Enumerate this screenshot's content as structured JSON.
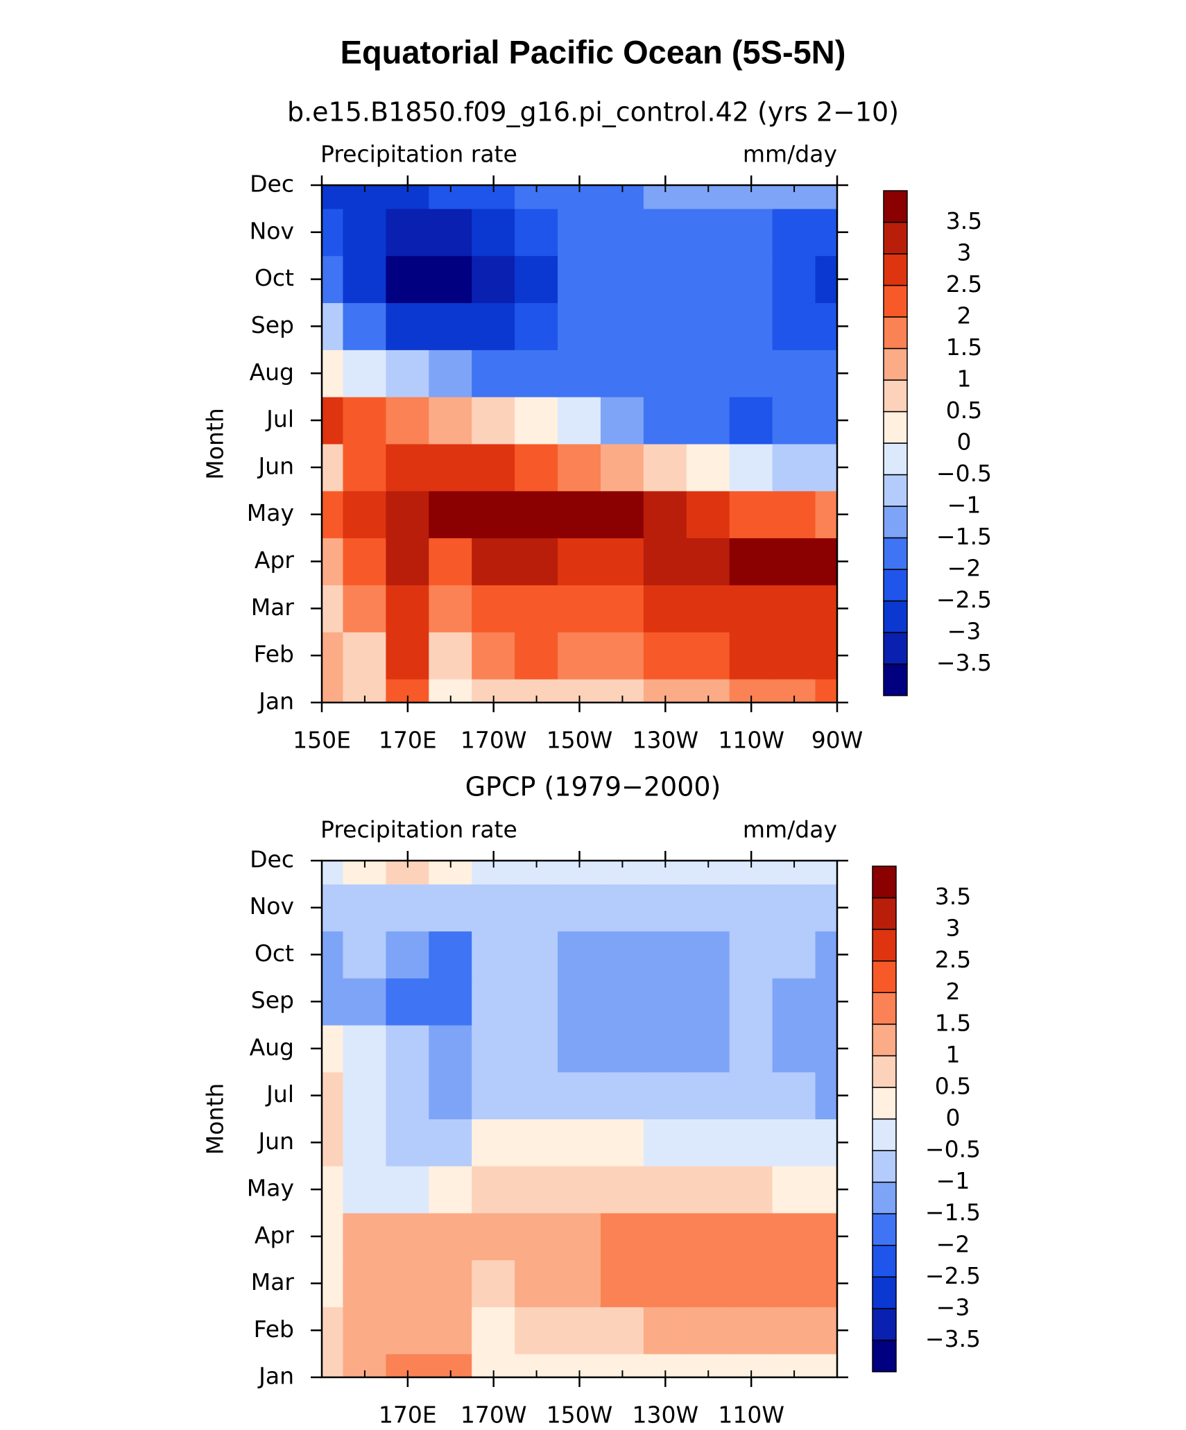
{
  "title": "Equatorial Pacific Ocean (5S-5N)",
  "chart_data": [
    {
      "type": "heatmap",
      "title": "b.e15.B1850.f09_g16.pi_control.42 (yrs 2−10)",
      "left_label": "Precipitation rate",
      "right_label": "mm/day",
      "ylabel": "Month",
      "categories": [
        "Jan",
        "Feb",
        "Mar",
        "Apr",
        "May",
        "Jun",
        "Jul",
        "Aug",
        "Sep",
        "Oct",
        "Nov",
        "Dec"
      ],
      "x": [
        150,
        160,
        170,
        180,
        190,
        200,
        210,
        220,
        230,
        240,
        250,
        260,
        270
      ],
      "xlim": [
        150,
        270
      ],
      "xticks": [
        {
          "value": 150,
          "label": "150E"
        },
        {
          "value": 170,
          "label": "170E"
        },
        {
          "value": 190,
          "label": "170W"
        },
        {
          "value": 210,
          "label": "150W"
        },
        {
          "value": 230,
          "label": "130W"
        },
        {
          "value": 250,
          "label": "110W"
        },
        {
          "value": 270,
          "label": "90W"
        }
      ],
      "values": [
        [
          1.2,
          0.8,
          2.2,
          0.4,
          0.8,
          0.6,
          0.7,
          0.8,
          1.0,
          1.2,
          1.5,
          1.8,
          2.0
        ],
        [
          1.3,
          0.9,
          2.8,
          0.8,
          1.6,
          2.0,
          1.8,
          1.8,
          2.0,
          2.3,
          2.5,
          2.6,
          2.5
        ],
        [
          0.9,
          1.5,
          2.8,
          1.5,
          2.0,
          2.2,
          2.3,
          2.4,
          2.5,
          2.6,
          2.8,
          2.8,
          2.6
        ],
        [
          1.4,
          2.2,
          3.2,
          2.4,
          3.0,
          3.0,
          2.6,
          2.8,
          3.0,
          3.2,
          3.6,
          3.8,
          3.6
        ],
        [
          2.0,
          2.9,
          3.2,
          3.6,
          3.8,
          3.8,
          3.7,
          3.6,
          3.3,
          2.8,
          2.3,
          2.0,
          1.8
        ],
        [
          0.8,
          2.4,
          2.6,
          2.6,
          2.5,
          2.2,
          1.8,
          1.2,
          0.6,
          0.2,
          -0.3,
          -0.7,
          -0.6
        ],
        [
          2.6,
          2.2,
          1.8,
          1.4,
          0.8,
          0.2,
          -0.4,
          -1.2,
          -1.8,
          -2.0,
          -2.2,
          -1.9,
          -1.6
        ],
        [
          0.4,
          -0.4,
          -0.8,
          -1.2,
          -1.6,
          -2.0,
          -2.0,
          -2.0,
          -2.0,
          -2.0,
          -2.0,
          -2.0,
          -2.0
        ],
        [
          -1.0,
          -1.8,
          -2.8,
          -3.0,
          -2.8,
          -2.4,
          -2.0,
          -2.0,
          -2.0,
          -2.0,
          -2.0,
          -2.3,
          -2.5
        ],
        [
          -2.0,
          -2.8,
          -3.8,
          -3.6,
          -3.2,
          -2.6,
          -2.0,
          -2.0,
          -2.0,
          -2.0,
          -2.0,
          -2.4,
          -2.8
        ],
        [
          -2.5,
          -2.8,
          -3.2,
          -3.3,
          -2.8,
          -2.5,
          -2.0,
          -2.0,
          -1.9,
          -1.8,
          -1.8,
          -2.2,
          -2.2
        ],
        [
          -2.6,
          -2.6,
          -2.6,
          -2.5,
          -2.3,
          -2.0,
          -1.8,
          -1.6,
          -1.5,
          -1.5,
          -1.5,
          -1.5,
          -1.5
        ]
      ],
      "levels": [
        {
          "value": -3.5,
          "label": "−3.5"
        },
        {
          "value": -3,
          "label": "−3"
        },
        {
          "value": -2.5,
          "label": "−2.5"
        },
        {
          "value": -2,
          "label": "−2"
        },
        {
          "value": -1.5,
          "label": "−1.5"
        },
        {
          "value": -1,
          "label": "−1"
        },
        {
          "value": -0.5,
          "label": "−0.5"
        },
        0,
        0.5,
        1,
        1.5,
        2,
        2.5,
        3,
        3.5
      ],
      "colors": [
        "#000080",
        "#0a20b0",
        "#0a38d0",
        "#1f55ea",
        "#3f74f4",
        "#7ea4f8",
        "#b4ccfb",
        "#dce9fd",
        "#fff0e0",
        "#fdd2bb",
        "#fcab87",
        "#fa8254",
        "#f75a28",
        "#de3410",
        "#b91e0a",
        "#8b0000"
      ]
    },
    {
      "type": "heatmap",
      "title": "GPCP (1979−2000)",
      "left_label": "Precipitation rate",
      "right_label": "mm/day",
      "ylabel": "Month",
      "categories": [
        "Jan",
        "Feb",
        "Mar",
        "Apr",
        "May",
        "Jun",
        "Jul",
        "Aug",
        "Sep",
        "Oct",
        "Nov",
        "Dec"
      ],
      "x": [
        150,
        160,
        170,
        180,
        190,
        200,
        210,
        220,
        230,
        240,
        250,
        260,
        270
      ],
      "xlim": [
        150,
        270
      ],
      "xticks": [
        {
          "value": 170,
          "label": "170E"
        },
        {
          "value": 190,
          "label": "170W"
        },
        {
          "value": 210,
          "label": "150W"
        },
        {
          "value": 230,
          "label": "130W"
        },
        {
          "value": 250,
          "label": "110W"
        }
      ],
      "values": [
        [
          0.8,
          1.2,
          1.5,
          1.8,
          0.3,
          0.3,
          0.3,
          0.2,
          0.2,
          0.2,
          0.3,
          0.3,
          0.4
        ],
        [
          0.7,
          1.3,
          1.4,
          1.3,
          0.4,
          0.6,
          0.8,
          0.9,
          1.0,
          1.1,
          1.2,
          1.3,
          1.4
        ],
        [
          0.4,
          1.3,
          1.3,
          1.1,
          0.8,
          1.0,
          1.3,
          1.5,
          1.8,
          1.6,
          1.8,
          1.9,
          1.6
        ],
        [
          0.3,
          1.0,
          1.2,
          1.0,
          1.0,
          1.0,
          1.4,
          1.6,
          1.9,
          1.7,
          1.6,
          1.9,
          1.5
        ],
        [
          0.2,
          -0.3,
          -0.4,
          0.4,
          0.8,
          0.9,
          0.9,
          0.9,
          0.8,
          0.8,
          0.6,
          0.4,
          0.2
        ],
        [
          0.6,
          -0.4,
          -0.9,
          -0.8,
          0.3,
          0.4,
          0.2,
          0.1,
          -0.2,
          -0.3,
          -0.3,
          -0.4,
          -0.4
        ],
        [
          0.6,
          -0.3,
          -1.0,
          -1.2,
          -1.0,
          -0.6,
          -0.6,
          -0.6,
          -0.6,
          -0.6,
          -0.6,
          -0.8,
          -1.2
        ],
        [
          0.3,
          -0.4,
          -1.0,
          -1.2,
          -1.0,
          -0.8,
          -1.2,
          -1.3,
          -1.3,
          -1.2,
          -0.8,
          -1.2,
          -1.3
        ],
        [
          -1.5,
          -1.2,
          -1.8,
          -1.6,
          -1.0,
          -0.8,
          -1.2,
          -1.3,
          -1.3,
          -1.3,
          -0.8,
          -1.2,
          -1.3
        ],
        [
          -1.2,
          -1.0,
          -1.4,
          -1.8,
          -1.0,
          -0.8,
          -1.2,
          -1.3,
          -1.2,
          -1.1,
          -0.8,
          -1.0,
          -1.2
        ],
        [
          -1.0,
          -0.8,
          -0.8,
          -0.8,
          -0.7,
          -0.7,
          -0.7,
          -0.7,
          -0.7,
          -0.7,
          -0.7,
          -0.7,
          -0.8
        ],
        [
          -0.3,
          0.3,
          0.6,
          0.4,
          -0.2,
          -0.3,
          -0.4,
          -0.4,
          -0.4,
          -0.4,
          -0.4,
          -0.4,
          -0.4
        ]
      ],
      "levels": [
        {
          "value": -3.5,
          "label": "−3.5"
        },
        {
          "value": -3,
          "label": "−3"
        },
        {
          "value": -2.5,
          "label": "−2.5"
        },
        {
          "value": -2,
          "label": "−2"
        },
        {
          "value": -1.5,
          "label": "−1.5"
        },
        {
          "value": -1,
          "label": "−1"
        },
        {
          "value": -0.5,
          "label": "−0.5"
        },
        0,
        0.5,
        1,
        1.5,
        2,
        2.5,
        3,
        3.5
      ],
      "colors": [
        "#000080",
        "#0a20b0",
        "#0a38d0",
        "#1f55ea",
        "#3f74f4",
        "#7ea4f8",
        "#b4ccfb",
        "#dce9fd",
        "#fff0e0",
        "#fdd2bb",
        "#fcab87",
        "#fa8254",
        "#f75a28",
        "#de3410",
        "#b91e0a",
        "#8b0000"
      ]
    }
  ]
}
